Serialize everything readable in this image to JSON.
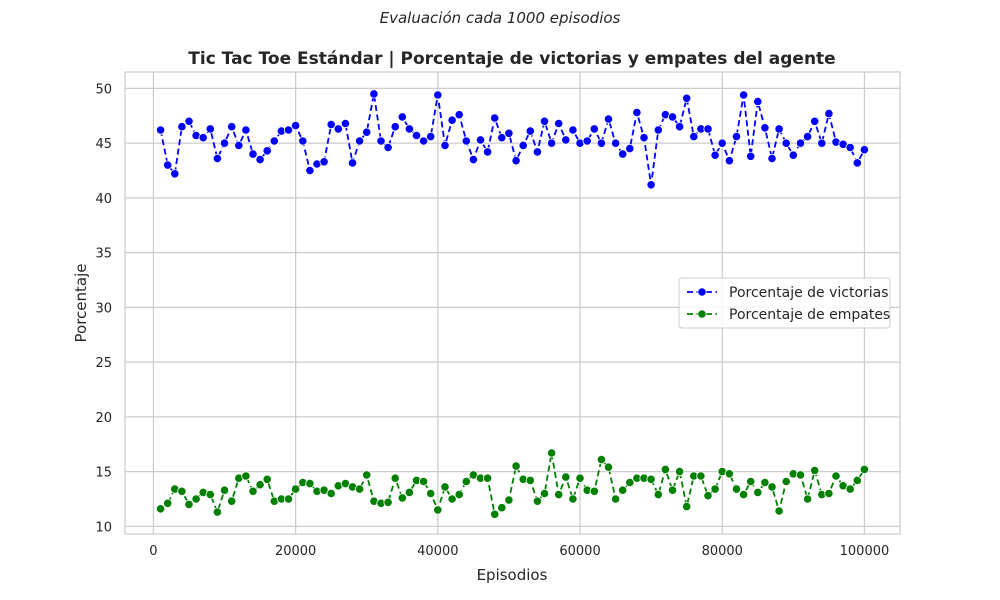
{
  "figure": {
    "suptitle": "Evaluación cada 1000 episodios"
  },
  "chart_data": {
    "type": "line",
    "title": "Tic Tac Toe Estándar | Porcentaje de victorias y empates del agente",
    "xlabel": "Episodios",
    "ylabel": "Porcentaje",
    "xlim": [
      -4000,
      105000
    ],
    "ylim": [
      9.3,
      51.5
    ],
    "xticks": [
      0,
      20000,
      40000,
      60000,
      80000,
      100000
    ],
    "xtick_labels": [
      "0",
      "20000",
      "40000",
      "60000",
      "80000",
      "100000"
    ],
    "yticks": [
      10,
      15,
      20,
      25,
      30,
      35,
      40,
      45,
      50
    ],
    "ytick_labels": [
      "10",
      "15",
      "20",
      "25",
      "30",
      "35",
      "40",
      "45",
      "50"
    ],
    "grid": true,
    "legend_position": "center-right",
    "x": [
      1000,
      2000,
      3000,
      4000,
      5000,
      6000,
      7000,
      8000,
      9000,
      10000,
      11000,
      12000,
      13000,
      14000,
      15000,
      16000,
      17000,
      18000,
      19000,
      20000,
      21000,
      22000,
      23000,
      24000,
      25000,
      26000,
      27000,
      28000,
      29000,
      30000,
      31000,
      32000,
      33000,
      34000,
      35000,
      36000,
      37000,
      38000,
      39000,
      40000,
      41000,
      42000,
      43000,
      44000,
      45000,
      46000,
      47000,
      48000,
      49000,
      50000,
      51000,
      52000,
      53000,
      54000,
      55000,
      56000,
      57000,
      58000,
      59000,
      60000,
      61000,
      62000,
      63000,
      64000,
      65000,
      66000,
      67000,
      68000,
      69000,
      70000,
      71000,
      72000,
      73000,
      74000,
      75000,
      76000,
      77000,
      78000,
      79000,
      80000,
      81000,
      82000,
      83000,
      84000,
      85000,
      86000,
      87000,
      88000,
      89000,
      90000,
      91000,
      92000,
      93000,
      94000,
      95000,
      96000,
      97000,
      98000,
      99000,
      100000
    ],
    "series": [
      {
        "name": "Porcentaje de victorias",
        "color": "#0000ff",
        "values": [
          46.2,
          43.0,
          42.2,
          46.5,
          47.0,
          45.7,
          45.5,
          46.3,
          43.6,
          45.0,
          46.5,
          44.8,
          46.2,
          44.0,
          43.5,
          44.3,
          45.2,
          46.1,
          46.2,
          46.6,
          45.2,
          42.5,
          43.1,
          43.3,
          46.7,
          46.3,
          46.8,
          43.2,
          45.2,
          46.0,
          49.5,
          45.2,
          44.6,
          46.5,
          47.4,
          46.3,
          45.7,
          45.2,
          45.6,
          49.4,
          44.8,
          47.1,
          47.6,
          45.2,
          43.5,
          45.3,
          44.2,
          47.3,
          45.5,
          45.9,
          43.4,
          44.8,
          46.1,
          44.2,
          47.0,
          45.0,
          46.8,
          45.3,
          46.2,
          45.0,
          45.2,
          46.3,
          45.0,
          47.2,
          45.0,
          44.0,
          44.5,
          47.8,
          45.5,
          41.2,
          46.2,
          47.6,
          47.4,
          46.5,
          49.1,
          45.6,
          46.3,
          46.3,
          43.9,
          45.0,
          43.4,
          45.6,
          49.4,
          43.8,
          48.8,
          46.4,
          43.6,
          46.3,
          45.0,
          43.9,
          45.0,
          45.6,
          47.0,
          45.0,
          47.7,
          45.1,
          44.9,
          44.6,
          43.2,
          44.4
        ]
      },
      {
        "name": "Porcentaje de empates",
        "color": "#008000",
        "values": [
          11.6,
          12.1,
          13.4,
          13.2,
          12.0,
          12.5,
          13.1,
          12.9,
          11.3,
          13.3,
          12.3,
          14.4,
          14.6,
          13.2,
          13.8,
          14.3,
          12.3,
          12.5,
          12.5,
          13.4,
          14.0,
          13.9,
          13.2,
          13.3,
          13.0,
          13.7,
          13.9,
          13.6,
          13.4,
          14.7,
          12.3,
          12.1,
          12.2,
          14.4,
          12.6,
          13.1,
          14.2,
          14.1,
          13.0,
          11.5,
          13.6,
          12.5,
          12.9,
          14.1,
          14.7,
          14.4,
          14.4,
          11.1,
          11.7,
          12.4,
          15.5,
          14.3,
          14.2,
          12.3,
          13.0,
          16.7,
          12.9,
          14.5,
          12.5,
          14.4,
          13.3,
          13.2,
          16.1,
          15.4,
          12.5,
          13.3,
          14.0,
          14.4,
          14.4,
          14.3,
          12.9,
          15.2,
          13.3,
          15.0,
          11.8,
          14.6,
          14.6,
          12.8,
          13.4,
          15.0,
          14.8,
          13.4,
          12.9,
          14.1,
          13.1,
          14.0,
          13.6,
          11.4,
          14.1,
          14.8,
          14.7,
          12.5,
          15.1,
          12.9,
          13.0,
          14.6,
          13.7,
          13.4,
          14.2,
          15.2
        ]
      }
    ]
  }
}
